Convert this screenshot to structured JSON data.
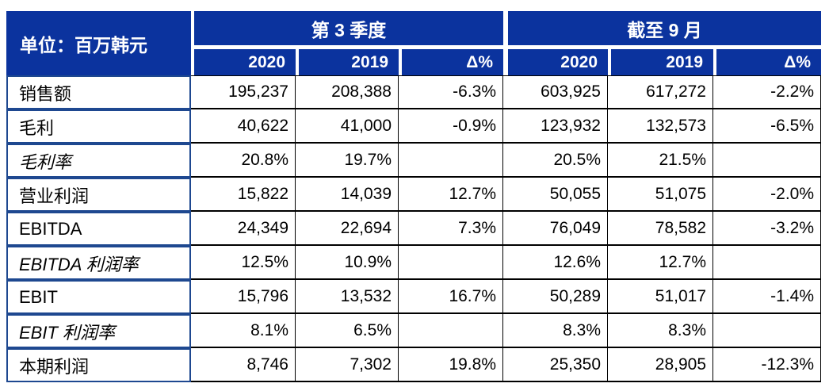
{
  "colors": {
    "header_blue": "#0B339E",
    "label_border_blue": "#1E4890",
    "grid_line": "#000000",
    "header_text": "#FFFFFF",
    "body_text": "#000000"
  },
  "chart_data": {
    "type": "table",
    "unit_label": "单位：百万韩元",
    "column_groups": [
      {
        "title": "第 3 季度",
        "columns": [
          "2020",
          "2019",
          "Δ%"
        ]
      },
      {
        "title": "截至 9 月",
        "columns": [
          "2020",
          "2019",
          "Δ%"
        ]
      }
    ],
    "rows": [
      {
        "label": "销售额",
        "style": "normal",
        "cells": [
          "195,237",
          "208,388",
          "-6.3%",
          "603,925",
          "617,272",
          "-2.2%"
        ]
      },
      {
        "label": "毛利",
        "style": "normal",
        "cells": [
          "40,622",
          "41,000",
          "-0.9%",
          "123,932",
          "132,573",
          "-6.5%"
        ]
      },
      {
        "label": "毛利率",
        "style": "italic",
        "cells": [
          "20.8%",
          "19.7%",
          "",
          "20.5%",
          "21.5%",
          ""
        ]
      },
      {
        "label": "营业利润",
        "style": "normal",
        "cells": [
          "15,822",
          "14,039",
          "12.7%",
          "50,055",
          "51,075",
          "-2.0%"
        ]
      },
      {
        "label": "EBITDA",
        "style": "normal",
        "cells": [
          "24,349",
          "22,694",
          "7.3%",
          "76,049",
          "78,582",
          "-3.2%"
        ]
      },
      {
        "label": "EBITDA 利润率",
        "style": "italic",
        "cells": [
          "12.5%",
          "10.9%",
          "",
          "12.6%",
          "12.7%",
          ""
        ]
      },
      {
        "label": "EBIT",
        "style": "normal",
        "cells": [
          "15,796",
          "13,532",
          "16.7%",
          "50,289",
          "51,017",
          "-1.4%"
        ]
      },
      {
        "label": "EBIT 利润率",
        "style": "italic",
        "cells": [
          "8.1%",
          "6.5%",
          "",
          "8.3%",
          "8.3%",
          ""
        ]
      },
      {
        "label": "本期利润",
        "style": "normal",
        "cells": [
          "8,746",
          "7,302",
          "19.8%",
          "25,350",
          "28,905",
          "-12.3%"
        ]
      }
    ]
  }
}
